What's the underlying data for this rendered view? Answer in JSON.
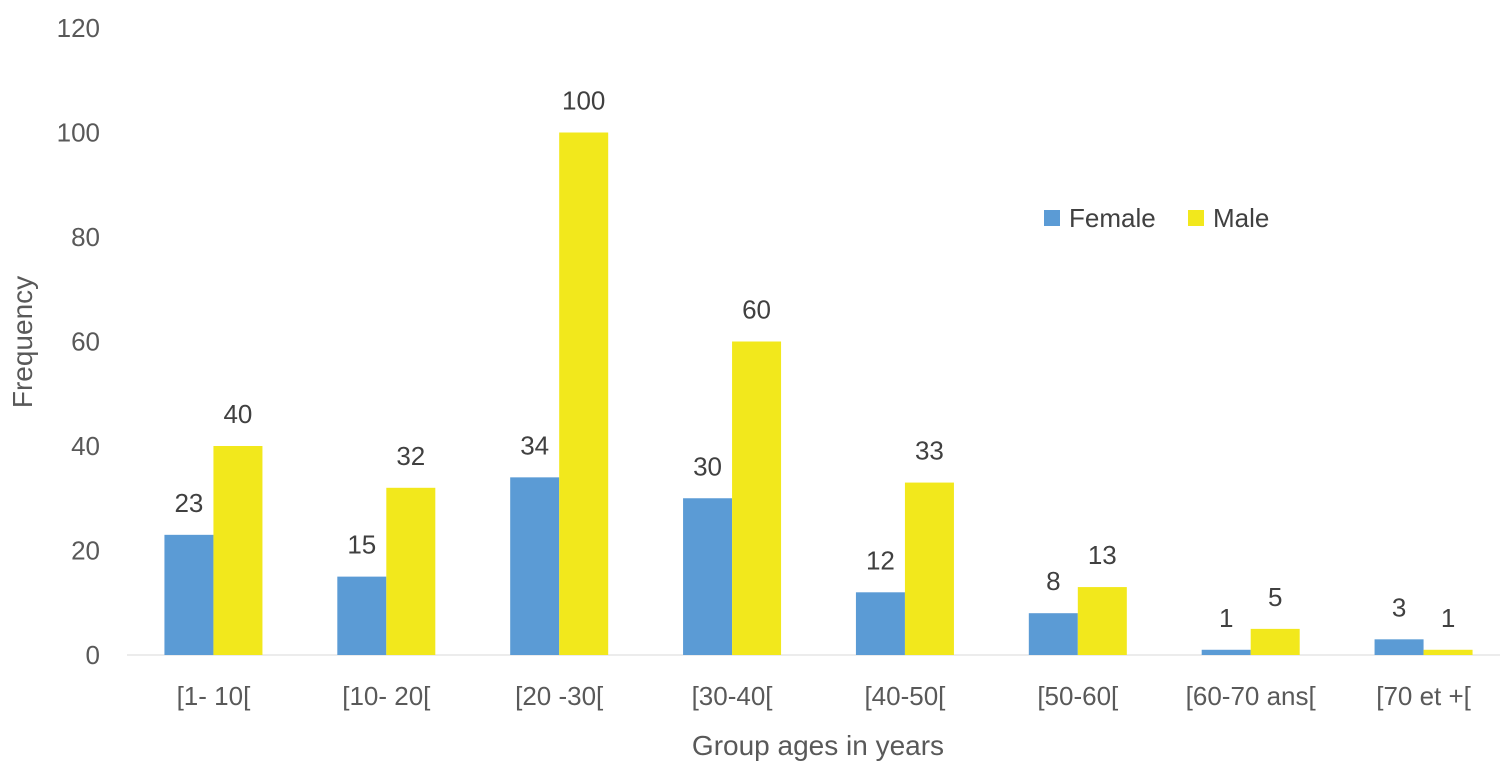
{
  "chart_data": {
    "type": "bar",
    "title": "",
    "xlabel": "Group ages in years",
    "ylabel": "Frequency",
    "ylim": [
      0,
      120
    ],
    "yticks": [
      0,
      20,
      40,
      60,
      80,
      100,
      120
    ],
    "grid": false,
    "legend_position": "right",
    "categories": [
      "[1- 10[",
      "[10- 20[",
      "[20 -30[",
      "[30-40[",
      "[40-50[",
      "[50-60[",
      "[60-70 ans[",
      "[70 et +["
    ],
    "series": [
      {
        "name": "Female",
        "color": "#5b9bd5",
        "values": [
          23,
          15,
          34,
          30,
          12,
          8,
          1,
          3
        ]
      },
      {
        "name": "Male",
        "color": "#f2e81c",
        "values": [
          40,
          32,
          100,
          60,
          33,
          13,
          5,
          1
        ]
      }
    ]
  }
}
